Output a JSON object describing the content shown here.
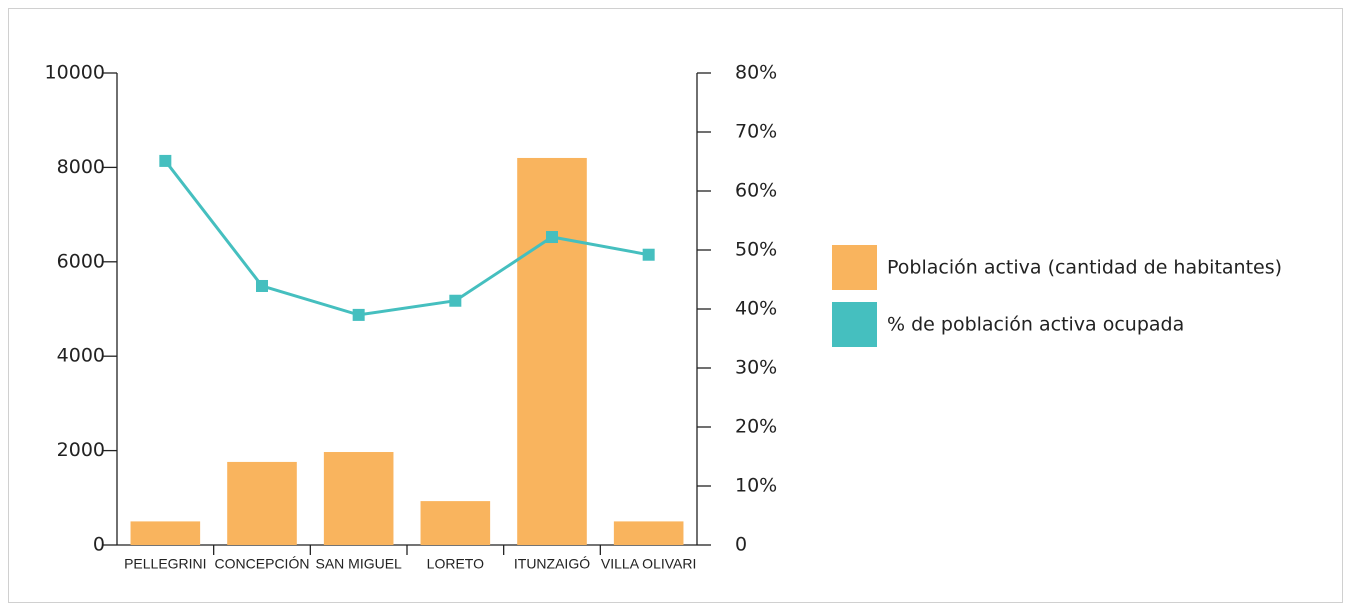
{
  "chart_data": {
    "type": "bar_line",
    "categories": [
      "PELLEGRINI",
      "CONCEPCIÓN",
      "SAN MIGUEL",
      "LORETO",
      "ITUNZAIGÓ",
      "VILLA OLIVARI"
    ],
    "series": [
      {
        "name": "Población activa (cantidad de habitantes)",
        "color": "#f9b45e",
        "type": "bar",
        "values": [
          500,
          1760,
          1970,
          930,
          8200,
          500
        ]
      },
      {
        "name": "% de población activa ocupada",
        "color": "#45bfbf",
        "type": "line",
        "axis": "y2",
        "values": [
          65.1,
          43.9,
          39,
          41.4,
          52.2,
          49.2
        ]
      }
    ],
    "ylim": [
      0,
      10000
    ],
    "yticks": [
      0,
      2000,
      4000,
      6000,
      8000,
      10000
    ],
    "y2lim": [
      0,
      80
    ],
    "y2ticks": [
      {
        "value": 0,
        "label": "0"
      },
      {
        "value": 10,
        "label": "10%"
      },
      {
        "value": 20,
        "label": "20%"
      },
      {
        "value": 30,
        "label": "30%"
      },
      {
        "value": 40,
        "label": "40%"
      },
      {
        "value": 50,
        "label": "50%"
      },
      {
        "value": 60,
        "label": "60%"
      },
      {
        "value": 70,
        "label": "70%"
      },
      {
        "value": 80,
        "label": "80%"
      }
    ],
    "legend": "right"
  }
}
